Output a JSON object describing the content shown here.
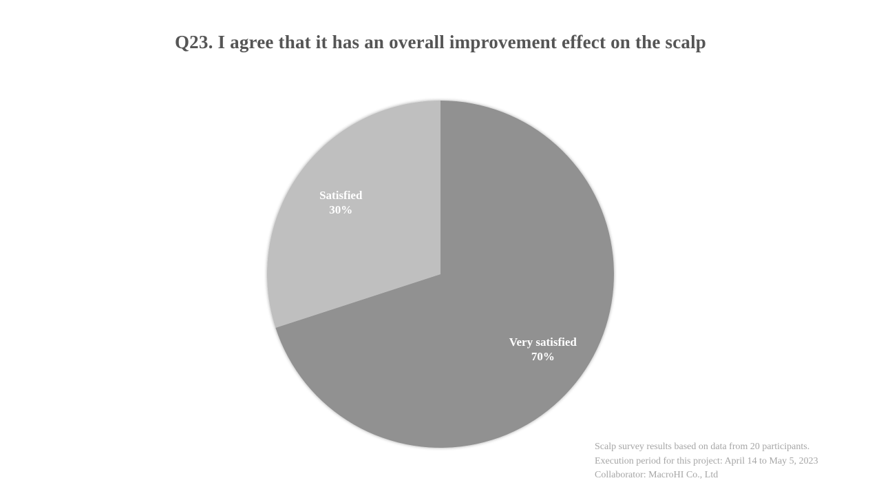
{
  "chart_data": {
    "type": "pie",
    "title": "Q23. I agree that it has an overall improvement effect on the scalp",
    "slices": [
      {
        "name": "Very satisfied",
        "value": 70,
        "label": "70%",
        "color": "#919191"
      },
      {
        "name": "Satisfied",
        "value": 30,
        "label": "30%",
        "color": "#bfbfbf"
      }
    ],
    "start_angle": "12 o'clock, clockwise",
    "legend": "none"
  },
  "footnote": {
    "lines": [
      "Scalp survey results based on data from 20 participants.",
      "Execution period for this project: April 14 to May 5, 2023",
      "Collaborator: MacroHI Co., Ltd"
    ]
  }
}
